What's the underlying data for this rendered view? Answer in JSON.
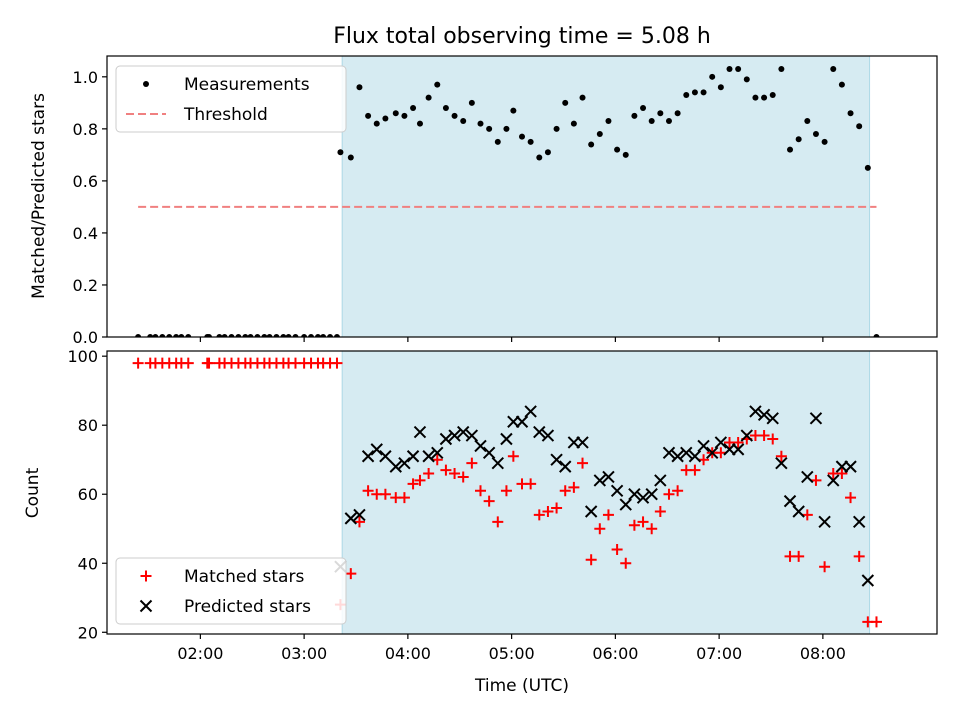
{
  "chart_data": [
    {
      "type": "scatter",
      "title": "Flux total observing time = 5.08 h",
      "xlabel": "",
      "ylabel": "Matched/Predicted stars",
      "ylim": [
        0,
        1.08
      ],
      "yticks": [
        0.0,
        0.2,
        0.4,
        0.6,
        0.8,
        1.0
      ],
      "ytick_labels": [
        "0.0",
        "0.2",
        "0.4",
        "0.6",
        "0.8",
        "1.0"
      ],
      "xlim": [
        "01:06",
        "09:06"
      ],
      "xticks": [
        "02:00",
        "03:00",
        "04:00",
        "05:00",
        "06:00",
        "07:00",
        "08:00"
      ],
      "shaded_region": [
        "03:22",
        "08:27"
      ],
      "shade_color": "#add8e6",
      "legend_position": "upper left",
      "legend": [
        "Measurements",
        "Threshold"
      ],
      "series": [
        {
          "name": "Measurements",
          "color": "#000000",
          "marker": "dot",
          "points": [
            [
              "01:24",
              0.0
            ],
            [
              "01:31",
              0.0
            ],
            [
              "01:34",
              0.0
            ],
            [
              "01:38",
              0.0
            ],
            [
              "01:42",
              0.0
            ],
            [
              "01:46",
              0.0
            ],
            [
              "01:49",
              0.0
            ],
            [
              "01:53",
              0.0
            ],
            [
              "02:04",
              0.0
            ],
            [
              "02:05",
              0.0
            ],
            [
              "02:11",
              0.0
            ],
            [
              "02:14",
              0.0
            ],
            [
              "02:18",
              0.0
            ],
            [
              "02:22",
              0.0
            ],
            [
              "02:26",
              0.0
            ],
            [
              "02:29",
              0.0
            ],
            [
              "02:33",
              0.0
            ],
            [
              "02:37",
              0.0
            ],
            [
              "02:40",
              0.0
            ],
            [
              "02:44",
              0.0
            ],
            [
              "02:48",
              0.0
            ],
            [
              "02:51",
              0.0
            ],
            [
              "02:55",
              0.0
            ],
            [
              "03:00",
              0.0
            ],
            [
              "03:04",
              0.0
            ],
            [
              "03:08",
              0.0
            ],
            [
              "03:11",
              0.0
            ],
            [
              "03:15",
              0.0
            ],
            [
              "03:19",
              0.0
            ],
            [
              "03:21",
              0.71
            ],
            [
              "03:27",
              0.69
            ],
            [
              "03:32",
              0.96
            ],
            [
              "03:37",
              0.85
            ],
            [
              "03:42",
              0.82
            ],
            [
              "03:47",
              0.84
            ],
            [
              "03:53",
              0.86
            ],
            [
              "03:58",
              0.85
            ],
            [
              "04:03",
              0.88
            ],
            [
              "04:07",
              0.82
            ],
            [
              "04:12",
              0.92
            ],
            [
              "04:17",
              0.97
            ],
            [
              "04:22",
              0.88
            ],
            [
              "04:27",
              0.85
            ],
            [
              "04:32",
              0.83
            ],
            [
              "04:37",
              0.9
            ],
            [
              "04:42",
              0.82
            ],
            [
              "04:47",
              0.8
            ],
            [
              "04:52",
              0.75
            ],
            [
              "04:57",
              0.8
            ],
            [
              "05:01",
              0.87
            ],
            [
              "05:06",
              0.77
            ],
            [
              "05:11",
              0.75
            ],
            [
              "05:16",
              0.69
            ],
            [
              "05:21",
              0.71
            ],
            [
              "05:26",
              0.8
            ],
            [
              "05:31",
              0.9
            ],
            [
              "05:36",
              0.82
            ],
            [
              "05:41",
              0.92
            ],
            [
              "05:46",
              0.74
            ],
            [
              "05:51",
              0.78
            ],
            [
              "05:56",
              0.83
            ],
            [
              "06:01",
              0.72
            ],
            [
              "06:06",
              0.7
            ],
            [
              "06:11",
              0.85
            ],
            [
              "06:16",
              0.88
            ],
            [
              "06:21",
              0.83
            ],
            [
              "06:26",
              0.86
            ],
            [
              "06:31",
              0.83
            ],
            [
              "06:36",
              0.86
            ],
            [
              "06:41",
              0.93
            ],
            [
              "06:46",
              0.94
            ],
            [
              "06:51",
              0.94
            ],
            [
              "06:56",
              1.0
            ],
            [
              "07:01",
              0.96
            ],
            [
              "07:06",
              1.03
            ],
            [
              "07:11",
              1.03
            ],
            [
              "07:16",
              0.99
            ],
            [
              "07:21",
              0.92
            ],
            [
              "07:26",
              0.92
            ],
            [
              "07:31",
              0.93
            ],
            [
              "07:36",
              1.03
            ],
            [
              "07:41",
              0.72
            ],
            [
              "07:46",
              0.76
            ],
            [
              "07:51",
              0.83
            ],
            [
              "07:56",
              0.78
            ],
            [
              "08:01",
              0.75
            ],
            [
              "08:06",
              1.03
            ],
            [
              "08:11",
              0.97
            ],
            [
              "08:16",
              0.86
            ],
            [
              "08:21",
              0.81
            ],
            [
              "08:26",
              0.65
            ],
            [
              "08:31",
              0.0
            ]
          ]
        },
        {
          "name": "Threshold",
          "color": "#f08080",
          "style": "dashed",
          "points": [
            [
              "01:24",
              0.5
            ],
            [
              "08:31",
              0.5
            ]
          ]
        }
      ]
    },
    {
      "type": "scatter",
      "title": "",
      "xlabel": "Time (UTC)",
      "ylabel": "Count",
      "ylim": [
        19.5,
        101.5
      ],
      "yticks": [
        20,
        40,
        60,
        80,
        100
      ],
      "ytick_labels": [
        "20",
        "40",
        "60",
        "80",
        "100"
      ],
      "xlim": [
        "01:06",
        "09:06"
      ],
      "xticks": [
        "02:00",
        "03:00",
        "04:00",
        "05:00",
        "06:00",
        "07:00",
        "08:00"
      ],
      "xtick_labels": [
        "02:00",
        "03:00",
        "04:00",
        "05:00",
        "06:00",
        "07:00",
        "08:00"
      ],
      "shaded_region": [
        "03:22",
        "08:27"
      ],
      "shade_color": "#add8e6",
      "legend_position": "lower left",
      "legend": [
        "Matched stars",
        "Predicted stars"
      ],
      "series": [
        {
          "name": "Matched stars",
          "color": "#ff0000",
          "marker": "plus",
          "points": [
            [
              "01:24",
              98
            ],
            [
              "01:31",
              98
            ],
            [
              "01:34",
              98
            ],
            [
              "01:38",
              98
            ],
            [
              "01:42",
              98
            ],
            [
              "01:46",
              98
            ],
            [
              "01:49",
              98
            ],
            [
              "01:53",
              98
            ],
            [
              "02:04",
              98
            ],
            [
              "02:05",
              98
            ],
            [
              "02:11",
              98
            ],
            [
              "02:14",
              98
            ],
            [
              "02:18",
              98
            ],
            [
              "02:22",
              98
            ],
            [
              "02:26",
              98
            ],
            [
              "02:29",
              98
            ],
            [
              "02:33",
              98
            ],
            [
              "02:37",
              98
            ],
            [
              "02:40",
              98
            ],
            [
              "02:44",
              98
            ],
            [
              "02:48",
              98
            ],
            [
              "02:51",
              98
            ],
            [
              "02:55",
              98
            ],
            [
              "03:00",
              98
            ],
            [
              "03:04",
              98
            ],
            [
              "03:08",
              98
            ],
            [
              "03:11",
              98
            ],
            [
              "03:15",
              98
            ],
            [
              "03:19",
              98
            ],
            [
              "03:21",
              28
            ],
            [
              "03:27",
              37
            ],
            [
              "03:32",
              52
            ],
            [
              "03:37",
              61
            ],
            [
              "03:42",
              60
            ],
            [
              "03:47",
              60
            ],
            [
              "03:53",
              59
            ],
            [
              "03:58",
              59
            ],
            [
              "04:03",
              63
            ],
            [
              "04:07",
              64
            ],
            [
              "04:12",
              66
            ],
            [
              "04:17",
              70
            ],
            [
              "04:22",
              67
            ],
            [
              "04:27",
              66
            ],
            [
              "04:32",
              65
            ],
            [
              "04:37",
              69
            ],
            [
              "04:42",
              61
            ],
            [
              "04:47",
              58
            ],
            [
              "04:52",
              52
            ],
            [
              "04:57",
              61
            ],
            [
              "05:01",
              71
            ],
            [
              "05:06",
              63
            ],
            [
              "05:11",
              63
            ],
            [
              "05:16",
              54
            ],
            [
              "05:21",
              55
            ],
            [
              "05:26",
              56
            ],
            [
              "05:31",
              61
            ],
            [
              "05:36",
              62
            ],
            [
              "05:41",
              69
            ],
            [
              "05:46",
              41
            ],
            [
              "05:51",
              50
            ],
            [
              "05:56",
              54
            ],
            [
              "06:01",
              44
            ],
            [
              "06:06",
              40
            ],
            [
              "06:11",
              51
            ],
            [
              "06:16",
              52
            ],
            [
              "06:21",
              50
            ],
            [
              "06:26",
              55
            ],
            [
              "06:31",
              60
            ],
            [
              "06:36",
              61
            ],
            [
              "06:41",
              67
            ],
            [
              "06:46",
              67
            ],
            [
              "06:51",
              70
            ],
            [
              "06:56",
              72
            ],
            [
              "07:01",
              72
            ],
            [
              "07:06",
              75
            ],
            [
              "07:11",
              75
            ],
            [
              "07:16",
              76
            ],
            [
              "07:21",
              77
            ],
            [
              "07:26",
              77
            ],
            [
              "07:31",
              76
            ],
            [
              "07:36",
              71
            ],
            [
              "07:41",
              42
            ],
            [
              "07:46",
              42
            ],
            [
              "07:51",
              54
            ],
            [
              "07:56",
              64
            ],
            [
              "08:01",
              39
            ],
            [
              "08:06",
              66
            ],
            [
              "08:11",
              66
            ],
            [
              "08:16",
              59
            ],
            [
              "08:21",
              42
            ],
            [
              "08:26",
              23
            ],
            [
              "08:31",
              23
            ]
          ]
        },
        {
          "name": "Predicted stars",
          "color": "#000000",
          "marker": "x",
          "points": [
            [
              "03:21",
              39
            ],
            [
              "03:27",
              53
            ],
            [
              "03:32",
              54
            ],
            [
              "03:37",
              71
            ],
            [
              "03:42",
              73
            ],
            [
              "03:47",
              71
            ],
            [
              "03:53",
              68
            ],
            [
              "03:58",
              69
            ],
            [
              "04:03",
              71
            ],
            [
              "04:07",
              78
            ],
            [
              "04:12",
              71
            ],
            [
              "04:17",
              72
            ],
            [
              "04:22",
              76
            ],
            [
              "04:27",
              77
            ],
            [
              "04:32",
              78
            ],
            [
              "04:37",
              77
            ],
            [
              "04:42",
              74
            ],
            [
              "04:47",
              72
            ],
            [
              "04:52",
              69
            ],
            [
              "04:57",
              76
            ],
            [
              "05:01",
              81
            ],
            [
              "05:06",
              81
            ],
            [
              "05:11",
              84
            ],
            [
              "05:16",
              78
            ],
            [
              "05:21",
              77
            ],
            [
              "05:26",
              70
            ],
            [
              "05:31",
              68
            ],
            [
              "05:36",
              75
            ],
            [
              "05:41",
              75
            ],
            [
              "05:46",
              55
            ],
            [
              "05:51",
              64
            ],
            [
              "05:56",
              65
            ],
            [
              "06:01",
              61
            ],
            [
              "06:06",
              57
            ],
            [
              "06:11",
              60
            ],
            [
              "06:16",
              59
            ],
            [
              "06:21",
              60
            ],
            [
              "06:26",
              64
            ],
            [
              "06:31",
              72
            ],
            [
              "06:36",
              71
            ],
            [
              "06:41",
              72
            ],
            [
              "06:46",
              71
            ],
            [
              "06:51",
              74
            ],
            [
              "06:56",
              72
            ],
            [
              "07:01",
              75
            ],
            [
              "07:06",
              73
            ],
            [
              "07:11",
              73
            ],
            [
              "07:16",
              77
            ],
            [
              "07:21",
              84
            ],
            [
              "07:26",
              83
            ],
            [
              "07:31",
              82
            ],
            [
              "07:36",
              69
            ],
            [
              "07:41",
              58
            ],
            [
              "07:46",
              55
            ],
            [
              "07:51",
              65
            ],
            [
              "07:56",
              82
            ],
            [
              "08:01",
              52
            ],
            [
              "08:06",
              64
            ],
            [
              "08:11",
              68
            ],
            [
              "08:16",
              68
            ],
            [
              "08:21",
              52
            ],
            [
              "08:26",
              35
            ]
          ]
        }
      ]
    }
  ]
}
